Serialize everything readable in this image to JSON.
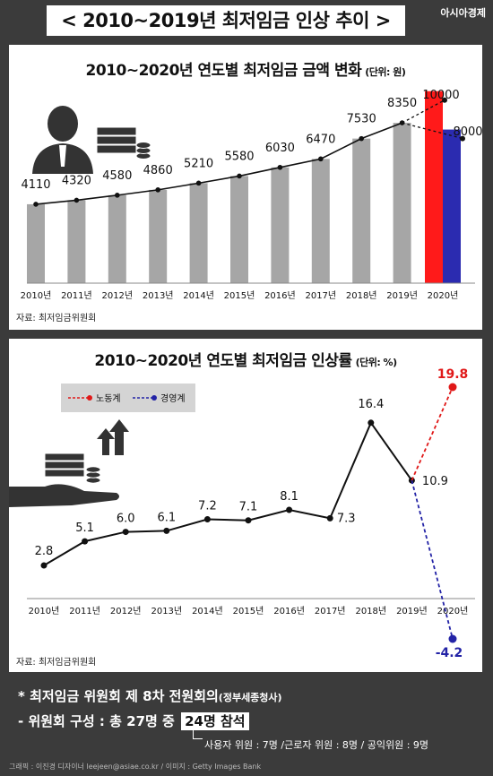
{
  "brand": "아시아경제",
  "main_title": "< 2010~2019년 최저임금 인상 추이 >",
  "charts": [
    {
      "title": "2010~2020년 연도별 최저임금 금액 변화",
      "unit": "(단위: 원)",
      "source": "자료: 최저임금위원회",
      "chart_data": {
        "type": "bar",
        "categories": [
          "2010년",
          "2011년",
          "2012년",
          "2013년",
          "2014년",
          "2015년",
          "2016년",
          "2017년",
          "2018년",
          "2019년",
          "2020년"
        ],
        "values": [
          4110,
          4320,
          4580,
          4860,
          5210,
          5580,
          6030,
          6470,
          7530,
          8350
        ],
        "labels": [
          "4110",
          "4320",
          "4580",
          "4860",
          "5210",
          "5580",
          "6030",
          "6470",
          "7530",
          "8350"
        ],
        "proposals": [
          {
            "name": "노동계",
            "value": 10000,
            "label": "10000",
            "color": "#ff1a1a"
          },
          {
            "name": "경영계",
            "value": 8000,
            "label": "8000",
            "color": "#2b2bb0"
          }
        ],
        "ylim": [
          0,
          10500
        ],
        "bar_color": "#a6a6a6"
      }
    },
    {
      "title": "2010~2020년 연도별 최저임금 인상률",
      "unit": "(단위: %)",
      "source": "자료: 최저임금위원회",
      "chart_data": {
        "type": "line",
        "categories": [
          "2010년",
          "2011년",
          "2012년",
          "2013년",
          "2014년",
          "2015년",
          "2016년",
          "2017년",
          "2018년",
          "2019년",
          "2020년"
        ],
        "values": [
          2.8,
          5.1,
          6.0,
          6.1,
          7.2,
          7.1,
          8.1,
          7.3,
          16.4,
          10.9
        ],
        "labels": [
          "2.8",
          "5.1",
          "6.0",
          "6.1",
          "7.2",
          "7.1",
          "8.1",
          "7.3",
          "16.4",
          "10.9"
        ],
        "proposals": [
          {
            "name": "노동계",
            "value": 19.8,
            "label": "19.8",
            "color": "#e01818"
          },
          {
            "name": "경영계",
            "value": -4.2,
            "label": "-4.2",
            "color": "#2323a6"
          }
        ],
        "ylim": [
          -4.2,
          19.8
        ],
        "legend": "top-left"
      }
    }
  ],
  "notes": {
    "line1": "* 최저임금 위원회 제 8차 전원회의",
    "line1_small": "(정부세종청사)",
    "line2_prefix": "- 위원회 구성 : 총 27명 중",
    "line2_highlight": "24명 참석",
    "line3": "사용자 위원 : 7명 /근로자 위원 : 8명 / 공익위원 : 9명"
  },
  "credits": "그래픽 : 이진경 디자이너 leejeen@asiae.co.kr / 이미지 : Getty Images Bank"
}
